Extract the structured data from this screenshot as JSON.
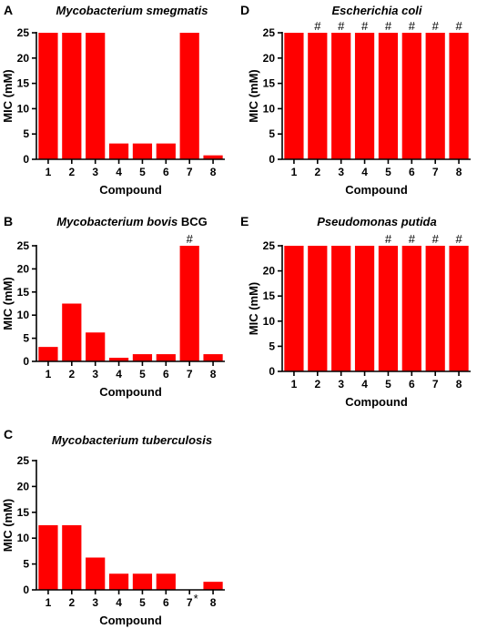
{
  "chart_data": [
    {
      "panel": "A",
      "type": "bar",
      "title": "Mycobacterium smegmatis",
      "xlabel": "Compound",
      "ylabel": "MIC (mM)",
      "categories": [
        "1",
        "2",
        "3",
        "4",
        "5",
        "6",
        "7",
        "8"
      ],
      "values": [
        25,
        25,
        25,
        3.125,
        3.125,
        3.125,
        25,
        0.78
      ],
      "ylim": [
        0,
        25
      ],
      "yticks": [
        0,
        5,
        10,
        15,
        20,
        25
      ],
      "bar_color": "#ff0000",
      "annotations": []
    },
    {
      "panel": "B",
      "type": "bar",
      "title": "Mycobacterium bovis",
      "title_suffix": "BCG",
      "xlabel": "Compound",
      "ylabel": "MIC (mM)",
      "categories": [
        "1",
        "2",
        "3",
        "4",
        "5",
        "6",
        "7",
        "8"
      ],
      "values": [
        3.125,
        12.5,
        6.25,
        0.78,
        1.56,
        1.56,
        25,
        1.56
      ],
      "ylim": [
        0,
        25
      ],
      "yticks": [
        0,
        5,
        10,
        15,
        20,
        25
      ],
      "bar_color": "#ff0000",
      "annotations": [
        {
          "category": "7",
          "text": "#"
        }
      ]
    },
    {
      "panel": "C",
      "type": "bar",
      "title": "Mycobacterium tuberculosis",
      "xlabel": "Compound",
      "ylabel": "MIC (mM)",
      "categories": [
        "1",
        "2",
        "3",
        "4",
        "5",
        "6",
        "7",
        "8"
      ],
      "values": [
        12.5,
        12.5,
        6.25,
        3.125,
        3.125,
        3.125,
        0,
        1.56
      ],
      "ylim": [
        0,
        25
      ],
      "yticks": [
        0,
        5,
        10,
        15,
        20,
        25
      ],
      "bar_color": "#ff0000",
      "annotations": [
        {
          "category": "7",
          "text": "*",
          "position": "below-axis"
        }
      ]
    },
    {
      "panel": "D",
      "type": "bar",
      "title": "Escherichia coli",
      "xlabel": "Compound",
      "ylabel": "MIC (mM)",
      "categories": [
        "1",
        "2",
        "3",
        "4",
        "5",
        "6",
        "7",
        "8"
      ],
      "values": [
        25,
        25,
        25,
        25,
        25,
        25,
        25,
        25
      ],
      "ylim": [
        0,
        25
      ],
      "yticks": [
        0,
        5,
        10,
        15,
        20,
        25
      ],
      "bar_color": "#ff0000",
      "annotations": [
        {
          "category": "2",
          "text": "#"
        },
        {
          "category": "3",
          "text": "#"
        },
        {
          "category": "4",
          "text": "#"
        },
        {
          "category": "5",
          "text": "#"
        },
        {
          "category": "6",
          "text": "#"
        },
        {
          "category": "7",
          "text": "#"
        },
        {
          "category": "8",
          "text": "#"
        }
      ]
    },
    {
      "panel": "E",
      "type": "bar",
      "title": "Pseudomonas putida",
      "xlabel": "Compound",
      "ylabel": "MIC (mM)",
      "categories": [
        "1",
        "2",
        "3",
        "4",
        "5",
        "6",
        "7",
        "8"
      ],
      "values": [
        25,
        25,
        25,
        25,
        25,
        25,
        25,
        25
      ],
      "ylim": [
        0,
        25
      ],
      "yticks": [
        0,
        5,
        10,
        15,
        20,
        25
      ],
      "bar_color": "#ff0000",
      "annotations": [
        {
          "category": "5",
          "text": "#"
        },
        {
          "category": "6",
          "text": "#"
        },
        {
          "category": "7",
          "text": "#"
        },
        {
          "category": "8",
          "text": "#"
        }
      ]
    }
  ]
}
